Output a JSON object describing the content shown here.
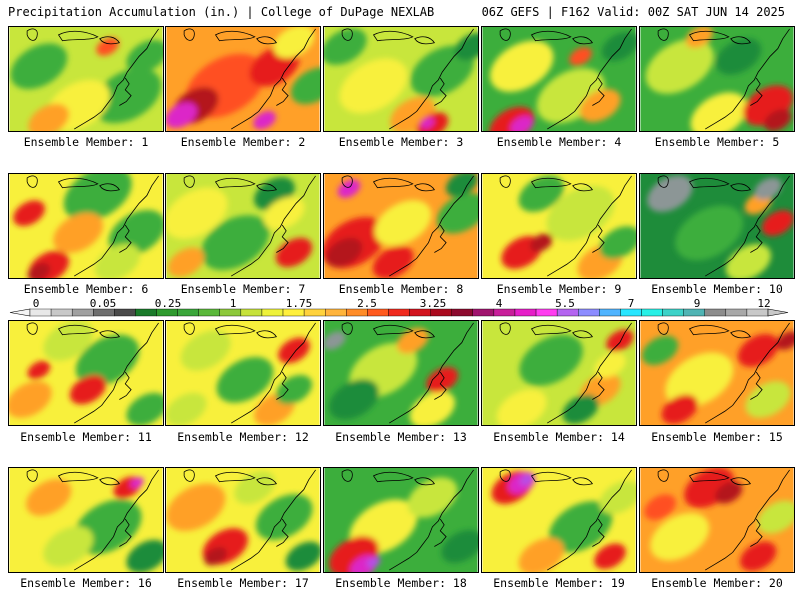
{
  "header": {
    "left_title": "Precipitation Accumulation (in.) | College of DuPage NEXLAB",
    "right_title": "06Z GEFS | F162 Valid: 00Z SAT JUN 14 2025"
  },
  "colorbar": {
    "tick_labels": [
      "0",
      "0.05",
      "0.25",
      "1",
      "1.75",
      "2.5",
      "3.25",
      "4",
      "5.5",
      "7",
      "9",
      "12"
    ],
    "colors": [
      "#e8e8e8",
      "#c8c8c8",
      "#a0a0a0",
      "#6e6e6e",
      "#4a4a4a",
      "#1a7a2a",
      "#2e9a2e",
      "#3aa63a",
      "#5ab83a",
      "#8cc83a",
      "#c6e23a",
      "#eef23a",
      "#fff03c",
      "#ffd23c",
      "#ffb43c",
      "#ff8c28",
      "#ff5a1e",
      "#f02a1e",
      "#d2141e",
      "#aa0a1e",
      "#8c0a2e",
      "#a0146e",
      "#c81e9a",
      "#e61ec8",
      "#ff3cf0",
      "#b464f0",
      "#8c8cff",
      "#50b4ff",
      "#28e6ff",
      "#28f0e6",
      "#3cd2c8",
      "#50b4b4",
      "#8c8c8c",
      "#a8a8a8",
      "#c8c8c8"
    ]
  },
  "map_colors": {
    "green_dark": "#1e8c3a",
    "green": "#3cae3c",
    "green_light": "#8cc832",
    "yellow_green": "#c8e63c",
    "yellow": "#f8f03c",
    "orange": "#ffa028",
    "red_orange": "#ff5020",
    "red": "#e61e1e",
    "dark_red": "#b4141e",
    "magenta": "#dc28c8",
    "violet": "#b450e6",
    "gray": "#8c9696"
  },
  "panels": [
    {
      "label": "Ensemble Member: 1",
      "base": "yellow_green",
      "blobs": [
        [
          "green",
          30,
          40,
          25
        ],
        [
          "green",
          120,
          70,
          30
        ],
        [
          "yellow",
          70,
          80,
          28
        ],
        [
          "orange",
          40,
          95,
          18
        ],
        [
          "red_orange",
          100,
          20,
          10
        ],
        [
          "green",
          140,
          30,
          18
        ]
      ]
    },
    {
      "label": "Ensemble Member: 2",
      "base": "orange",
      "blobs": [
        [
          "red_orange",
          60,
          60,
          35
        ],
        [
          "red",
          110,
          40,
          22
        ],
        [
          "dark_red",
          30,
          80,
          20
        ],
        [
          "magenta",
          15,
          90,
          14
        ],
        [
          "magenta",
          100,
          95,
          10
        ],
        [
          "yellow",
          130,
          15,
          18
        ],
        [
          "green",
          150,
          60,
          20
        ]
      ]
    },
    {
      "label": "Ensemble Member: 3",
      "base": "yellow_green",
      "blobs": [
        [
          "yellow",
          50,
          60,
          30
        ],
        [
          "green",
          20,
          20,
          20
        ],
        [
          "green",
          120,
          45,
          28
        ],
        [
          "orange",
          90,
          90,
          20
        ],
        [
          "red",
          110,
          100,
          14
        ],
        [
          "magenta",
          105,
          98,
          6
        ],
        [
          "green_dark",
          150,
          20,
          15
        ]
      ]
    },
    {
      "label": "Ensemble Member: 4",
      "base": "green",
      "blobs": [
        [
          "yellow",
          40,
          40,
          28
        ],
        [
          "yellow_green",
          90,
          70,
          30
        ],
        [
          "red",
          30,
          100,
          20
        ],
        [
          "magenta",
          40,
          100,
          10
        ],
        [
          "orange",
          120,
          80,
          18
        ],
        [
          "red_orange",
          100,
          30,
          10
        ],
        [
          "green_dark",
          140,
          20,
          16
        ]
      ]
    },
    {
      "label": "Ensemble Member: 5",
      "base": "green",
      "blobs": [
        [
          "yellow_green",
          40,
          40,
          30
        ],
        [
          "yellow",
          80,
          90,
          25
        ],
        [
          "red",
          130,
          80,
          22
        ],
        [
          "dark_red",
          140,
          95,
          12
        ],
        [
          "green_dark",
          100,
          30,
          20
        ],
        [
          "orange",
          60,
          10,
          12
        ]
      ]
    },
    {
      "label": "Ensemble Member: 6",
      "base": "yellow",
      "blobs": [
        [
          "green",
          90,
          20,
          30
        ],
        [
          "green",
          130,
          60,
          25
        ],
        [
          "red",
          20,
          40,
          14
        ],
        [
          "red",
          40,
          95,
          18
        ],
        [
          "dark_red",
          30,
          100,
          10
        ],
        [
          "orange",
          70,
          60,
          22
        ],
        [
          "yellow_green",
          110,
          90,
          20
        ]
      ]
    },
    {
      "label": "Ensemble Member: 7",
      "base": "yellow_green",
      "blobs": [
        [
          "green",
          70,
          70,
          30
        ],
        [
          "green_dark",
          110,
          20,
          18
        ],
        [
          "yellow",
          30,
          40,
          28
        ],
        [
          "orange",
          20,
          90,
          16
        ],
        [
          "red",
          130,
          80,
          16
        ],
        [
          "yellow",
          120,
          40,
          18
        ]
      ]
    },
    {
      "label": "Ensemble Member: 8",
      "base": "orange",
      "blobs": [
        [
          "red",
          30,
          70,
          28
        ],
        [
          "dark_red",
          20,
          80,
          16
        ],
        [
          "magenta",
          25,
          15,
          10
        ],
        [
          "yellow",
          80,
          50,
          25
        ],
        [
          "green",
          140,
          40,
          22
        ],
        [
          "red",
          70,
          90,
          18
        ],
        [
          "green_dark",
          140,
          10,
          14
        ]
      ]
    },
    {
      "label": "Ensemble Member: 9",
      "base": "yellow",
      "blobs": [
        [
          "yellow_green",
          100,
          40,
          30
        ],
        [
          "green",
          60,
          20,
          20
        ],
        [
          "red",
          40,
          80,
          18
        ],
        [
          "orange",
          120,
          90,
          20
        ],
        [
          "dark_red",
          60,
          70,
          10
        ],
        [
          "green",
          140,
          70,
          18
        ]
      ]
    },
    {
      "label": "Ensemble Member: 10",
      "base": "green_dark",
      "blobs": [
        [
          "gray",
          30,
          20,
          20
        ],
        [
          "green",
          70,
          60,
          30
        ],
        [
          "yellow_green",
          110,
          90,
          20
        ],
        [
          "red",
          140,
          50,
          14
        ],
        [
          "orange",
          120,
          30,
          12
        ],
        [
          "gray",
          130,
          15,
          12
        ]
      ]
    },
    {
      "label": "Ensemble Member: 11",
      "base": "yellow",
      "blobs": [
        [
          "green",
          100,
          40,
          28
        ],
        [
          "yellow_green",
          60,
          20,
          22
        ],
        [
          "orange",
          20,
          80,
          20
        ],
        [
          "red",
          80,
          70,
          16
        ],
        [
          "red",
          30,
          50,
          10
        ],
        [
          "green",
          140,
          90,
          18
        ]
      ]
    },
    {
      "label": "Ensemble Member: 12",
      "base": "yellow",
      "blobs": [
        [
          "green",
          80,
          60,
          25
        ],
        [
          "yellow_green",
          40,
          30,
          22
        ],
        [
          "orange",
          110,
          90,
          18
        ],
        [
          "red",
          130,
          30,
          14
        ],
        [
          "green",
          130,
          70,
          16
        ],
        [
          "yellow_green",
          20,
          90,
          18
        ]
      ]
    },
    {
      "label": "Ensemble Member: 13",
      "base": "green",
      "blobs": [
        [
          "yellow_green",
          60,
          50,
          30
        ],
        [
          "yellow",
          110,
          90,
          20
        ],
        [
          "red",
          120,
          60,
          14
        ],
        [
          "green_dark",
          30,
          80,
          22
        ],
        [
          "orange",
          90,
          20,
          14
        ],
        [
          "gray",
          10,
          20,
          10
        ]
      ]
    },
    {
      "label": "Ensemble Member: 14",
      "base": "yellow_green",
      "blobs": [
        [
          "green",
          70,
          40,
          28
        ],
        [
          "yellow",
          40,
          90,
          22
        ],
        [
          "orange",
          120,
          70,
          18
        ],
        [
          "red",
          140,
          20,
          12
        ],
        [
          "green_dark",
          100,
          90,
          16
        ],
        [
          "yellow",
          130,
          45,
          14
        ]
      ]
    },
    {
      "label": "Ensemble Member: 15",
      "base": "orange",
      "blobs": [
        [
          "yellow",
          60,
          60,
          30
        ],
        [
          "red",
          120,
          30,
          18
        ],
        [
          "red",
          40,
          90,
          16
        ],
        [
          "yellow_green",
          130,
          80,
          20
        ],
        [
          "dark_red",
          150,
          20,
          10
        ],
        [
          "green",
          20,
          30,
          16
        ]
      ]
    },
    {
      "label": "Ensemble Member: 16",
      "base": "yellow",
      "blobs": [
        [
          "green",
          100,
          60,
          30
        ],
        [
          "yellow_green",
          60,
          80,
          22
        ],
        [
          "orange",
          40,
          30,
          20
        ],
        [
          "red",
          120,
          20,
          12
        ],
        [
          "green_dark",
          140,
          90,
          18
        ],
        [
          "magenta",
          130,
          15,
          6
        ]
      ]
    },
    {
      "label": "Ensemble Member: 17",
      "base": "yellow",
      "blobs": [
        [
          "orange",
          30,
          40,
          26
        ],
        [
          "red",
          60,
          80,
          20
        ],
        [
          "green",
          120,
          50,
          25
        ],
        [
          "yellow_green",
          90,
          20,
          18
        ],
        [
          "dark_red",
          50,
          90,
          10
        ],
        [
          "green_dark",
          140,
          90,
          16
        ]
      ]
    },
    {
      "label": "Ensemble Member: 18",
      "base": "green",
      "blobs": [
        [
          "yellow",
          60,
          60,
          30
        ],
        [
          "red",
          30,
          90,
          22
        ],
        [
          "magenta",
          40,
          100,
          12
        ],
        [
          "violet",
          50,
          96,
          6
        ],
        [
          "yellow_green",
          110,
          30,
          22
        ],
        [
          "green_dark",
          140,
          80,
          18
        ]
      ]
    },
    {
      "label": "Ensemble Member: 19",
      "base": "yellow",
      "blobs": [
        [
          "red",
          30,
          20,
          18
        ],
        [
          "magenta",
          40,
          15,
          12
        ],
        [
          "violet",
          45,
          12,
          6
        ],
        [
          "green",
          100,
          60,
          28
        ],
        [
          "orange",
          60,
          90,
          20
        ],
        [
          "red",
          130,
          90,
          14
        ],
        [
          "yellow_green",
          140,
          30,
          18
        ]
      ]
    },
    {
      "label": "Ensemble Member: 20",
      "base": "orange",
      "blobs": [
        [
          "red",
          70,
          20,
          22
        ],
        [
          "dark_red",
          90,
          25,
          12
        ],
        [
          "yellow",
          40,
          70,
          26
        ],
        [
          "red",
          120,
          90,
          16
        ],
        [
          "yellow_green",
          140,
          50,
          18
        ],
        [
          "red_orange",
          20,
          40,
          14
        ]
      ]
    }
  ]
}
